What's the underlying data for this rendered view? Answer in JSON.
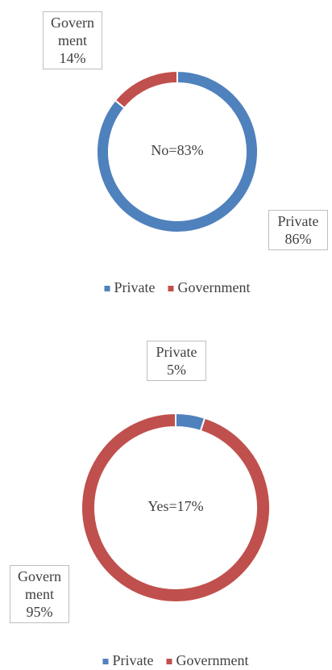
{
  "chart_data": [
    {
      "type": "donut",
      "center_text": "No=83%",
      "categories": [
        "Private",
        "Government"
      ],
      "values": [
        86,
        14
      ],
      "value_labels": [
        "86%",
        "14%"
      ],
      "colors": [
        "#4f81bd",
        "#c0504d"
      ],
      "legend": "bottom"
    },
    {
      "type": "donut",
      "center_text": "Yes=17%",
      "categories": [
        "Private",
        "Government"
      ],
      "values": [
        5,
        95
      ],
      "value_labels": [
        "5%",
        "95%"
      ],
      "colors": [
        "#4f81bd",
        "#c0504d"
      ],
      "legend": "bottom"
    }
  ]
}
